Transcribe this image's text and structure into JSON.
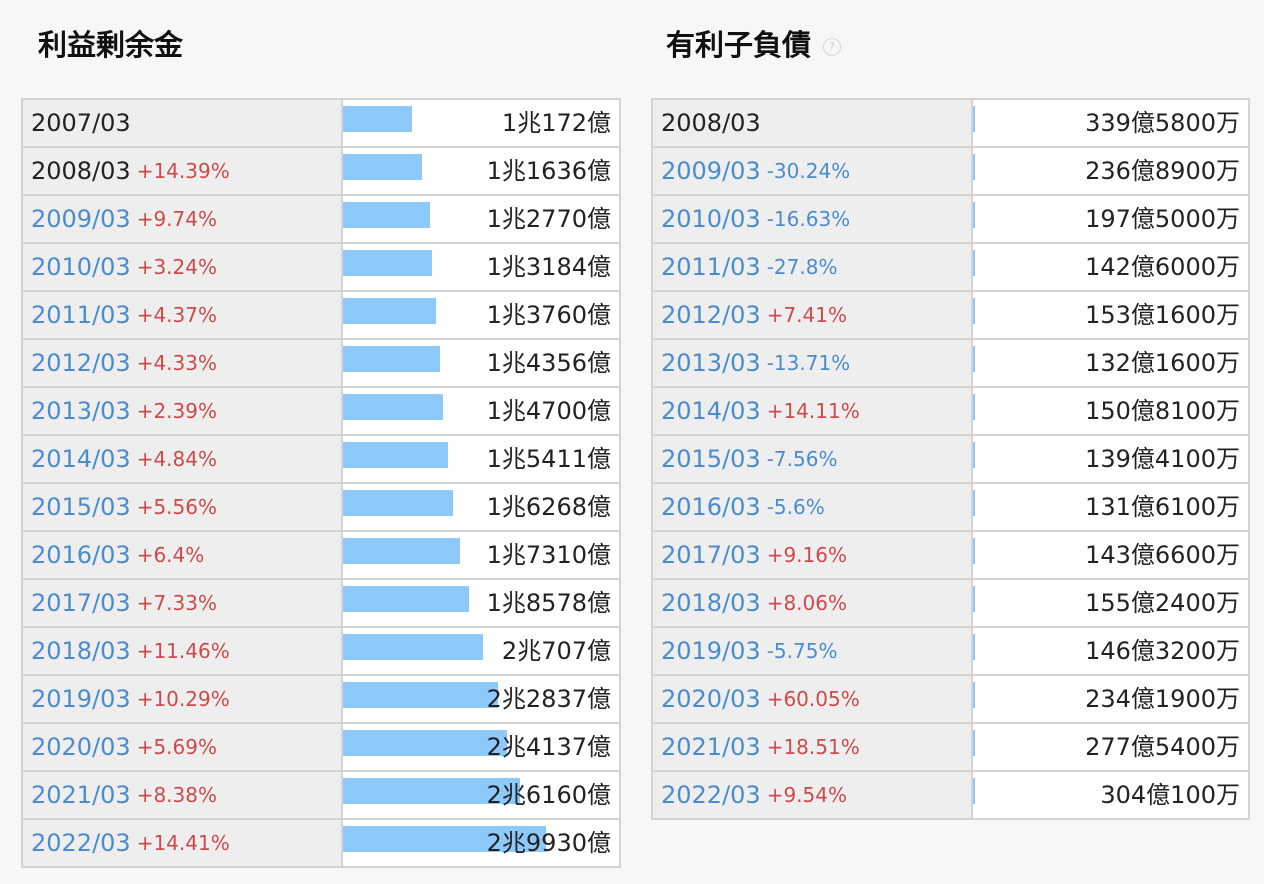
{
  "retained_earnings": {
    "title": "利益剰余金",
    "bar_max_value": 29930,
    "rows": [
      {
        "period": "2007/03",
        "change": "",
        "direction": "",
        "value": "1兆172億",
        "amount_oku": 10172
      },
      {
        "period": "2008/03",
        "change": "+14.39%",
        "direction": "up",
        "value": "1兆1636億",
        "amount_oku": 11636
      },
      {
        "period": "2009/03",
        "change": "+9.74%",
        "direction": "up",
        "value": "1兆2770億",
        "amount_oku": 12770
      },
      {
        "period": "2010/03",
        "change": "+3.24%",
        "direction": "up",
        "value": "1兆3184億",
        "amount_oku": 13184
      },
      {
        "period": "2011/03",
        "change": "+4.37%",
        "direction": "up",
        "value": "1兆3760億",
        "amount_oku": 13760
      },
      {
        "period": "2012/03",
        "change": "+4.33%",
        "direction": "up",
        "value": "1兆4356億",
        "amount_oku": 14356
      },
      {
        "period": "2013/03",
        "change": "+2.39%",
        "direction": "up",
        "value": "1兆4700億",
        "amount_oku": 14700
      },
      {
        "period": "2014/03",
        "change": "+4.84%",
        "direction": "up",
        "value": "1兆5411億",
        "amount_oku": 15411
      },
      {
        "period": "2015/03",
        "change": "+5.56%",
        "direction": "up",
        "value": "1兆6268億",
        "amount_oku": 16268
      },
      {
        "period": "2016/03",
        "change": "+6.4%",
        "direction": "up",
        "value": "1兆7310億",
        "amount_oku": 17310
      },
      {
        "period": "2017/03",
        "change": "+7.33%",
        "direction": "up",
        "value": "1兆8578億",
        "amount_oku": 18578
      },
      {
        "period": "2018/03",
        "change": "+11.46%",
        "direction": "up",
        "value": "2兆707億",
        "amount_oku": 20707
      },
      {
        "period": "2019/03",
        "change": "+10.29%",
        "direction": "up",
        "value": "2兆2837億",
        "amount_oku": 22837
      },
      {
        "period": "2020/03",
        "change": "+5.69%",
        "direction": "up",
        "value": "2兆4137億",
        "amount_oku": 24137
      },
      {
        "period": "2021/03",
        "change": "+8.38%",
        "direction": "up",
        "value": "2兆6160億",
        "amount_oku": 26160
      },
      {
        "period": "2022/03",
        "change": "+14.41%",
        "direction": "up",
        "value": "2兆9930億",
        "amount_oku": 29930
      }
    ]
  },
  "interest_bearing_debt": {
    "title": "有利子負債",
    "help_icon": "question-circle-icon",
    "bar_max_value": 29930,
    "rows": [
      {
        "period": "2008/03",
        "change": "",
        "direction": "",
        "value": "339億5800万",
        "amount_oku": 339.58
      },
      {
        "period": "2009/03",
        "change": "-30.24%",
        "direction": "down",
        "value": "236億8900万",
        "amount_oku": 236.89
      },
      {
        "period": "2010/03",
        "change": "-16.63%",
        "direction": "down",
        "value": "197億5000万",
        "amount_oku": 197.5
      },
      {
        "period": "2011/03",
        "change": "-27.8%",
        "direction": "down",
        "value": "142億6000万",
        "amount_oku": 142.6
      },
      {
        "period": "2012/03",
        "change": "+7.41%",
        "direction": "up",
        "value": "153億1600万",
        "amount_oku": 153.16
      },
      {
        "period": "2013/03",
        "change": "-13.71%",
        "direction": "down",
        "value": "132億1600万",
        "amount_oku": 132.16
      },
      {
        "period": "2014/03",
        "change": "+14.11%",
        "direction": "up",
        "value": "150億8100万",
        "amount_oku": 150.81
      },
      {
        "period": "2015/03",
        "change": "-7.56%",
        "direction": "down",
        "value": "139億4100万",
        "amount_oku": 139.41
      },
      {
        "period": "2016/03",
        "change": "-5.6%",
        "direction": "down",
        "value": "131億6100万",
        "amount_oku": 131.61
      },
      {
        "period": "2017/03",
        "change": "+9.16%",
        "direction": "up",
        "value": "143億6600万",
        "amount_oku": 143.66
      },
      {
        "period": "2018/03",
        "change": "+8.06%",
        "direction": "up",
        "value": "155億2400万",
        "amount_oku": 155.24
      },
      {
        "period": "2019/03",
        "change": "-5.75%",
        "direction": "down",
        "value": "146億3200万",
        "amount_oku": 146.32
      },
      {
        "period": "2020/03",
        "change": "+60.05%",
        "direction": "up",
        "value": "234億1900万",
        "amount_oku": 234.19
      },
      {
        "period": "2021/03",
        "change": "+18.51%",
        "direction": "up",
        "value": "277億5400万",
        "amount_oku": 277.54
      },
      {
        "period": "2022/03",
        "change": "+9.54%",
        "direction": "up",
        "value": "304億100万",
        "amount_oku": 304.01
      }
    ]
  },
  "colors": {
    "bar": "#8ec9fb",
    "link": "#4a8ccc",
    "increase": "#cc4a4a",
    "decrease": "#4a8ccc"
  }
}
